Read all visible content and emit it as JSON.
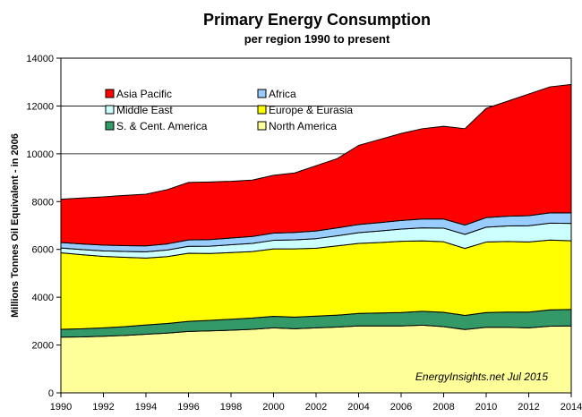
{
  "chart_data": {
    "type": "area",
    "stacked": true,
    "title": "Primary Energy Consumption",
    "subtitle": "per region 1990 to present",
    "xlabel": "",
    "ylabel": "Millions Tonnes Oil Equivalent - in 2006",
    "xlim": [
      1990,
      2014
    ],
    "ylim": [
      0,
      14000
    ],
    "x_ticks": [
      1990,
      1992,
      1994,
      1996,
      1998,
      2000,
      2002,
      2004,
      2006,
      2008,
      2010,
      2012,
      2014
    ],
    "y_ticks": [
      0,
      2000,
      4000,
      6000,
      8000,
      10000,
      12000,
      14000
    ],
    "grid": "horizontal",
    "legend_position": "top-left",
    "annotation": "EnergyInsights.net  Jul 2015",
    "x": [
      1990,
      1991,
      1992,
      1993,
      1994,
      1995,
      1996,
      1997,
      1998,
      1999,
      2000,
      2001,
      2002,
      2003,
      2004,
      2005,
      2006,
      2007,
      2008,
      2009,
      2010,
      2011,
      2012,
      2013,
      2014
    ],
    "series": [
      {
        "name": "North America",
        "color": "#ffff99",
        "values": [
          2330,
          2340,
          2370,
          2400,
          2450,
          2500,
          2570,
          2590,
          2620,
          2660,
          2720,
          2680,
          2720,
          2750,
          2800,
          2800,
          2800,
          2830,
          2770,
          2650,
          2740,
          2740,
          2720,
          2790,
          2800
        ]
      },
      {
        "name": "S. & Cent. America",
        "color": "#339966",
        "values": [
          330,
          340,
          350,
          370,
          390,
          400,
          420,
          440,
          460,
          470,
          480,
          490,
          490,
          500,
          520,
          540,
          560,
          580,
          600,
          590,
          620,
          640,
          660,
          680,
          690
        ]
      },
      {
        "name": "Europe & Eurasia",
        "color": "#ffff00",
        "values": [
          3200,
          3100,
          2990,
          2900,
          2800,
          2800,
          2850,
          2800,
          2790,
          2780,
          2820,
          2850,
          2840,
          2900,
          2930,
          2950,
          2980,
          2950,
          2950,
          2800,
          2950,
          2950,
          2930,
          2920,
          2870
        ]
      },
      {
        "name": "Middle East",
        "color": "#ccffff",
        "values": [
          200,
          215,
          230,
          245,
          260,
          275,
          290,
          305,
          325,
          340,
          360,
          380,
          400,
          420,
          450,
          480,
          510,
          540,
          570,
          590,
          620,
          650,
          680,
          710,
          730
        ]
      },
      {
        "name": "Africa",
        "color": "#99ccff",
        "values": [
          230,
          235,
          240,
          245,
          250,
          255,
          265,
          275,
          280,
          290,
          300,
          310,
          320,
          330,
          340,
          350,
          360,
          370,
          380,
          390,
          400,
          410,
          420,
          430,
          440
        ]
      },
      {
        "name": "Asia Pacific",
        "color": "#ff0000",
        "values": [
          1810,
          1920,
          2020,
          2100,
          2160,
          2270,
          2405,
          2410,
          2375,
          2360,
          2420,
          2490,
          2730,
          2900,
          3310,
          3480,
          3640,
          3780,
          3880,
          4030,
          4570,
          4810,
          5090,
          5270,
          5370
        ]
      }
    ]
  }
}
